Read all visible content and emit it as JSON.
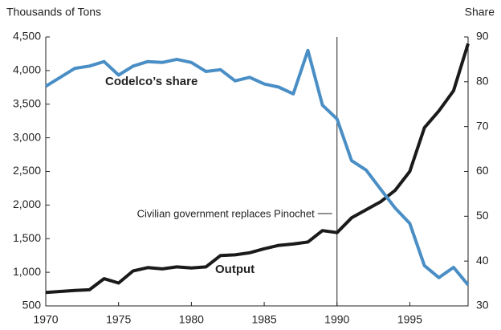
{
  "chart_data": {
    "type": "line",
    "y_label": "Thousands of Tons",
    "y2_label": "Share",
    "x": [
      1970,
      1971,
      1972,
      1973,
      1974,
      1975,
      1976,
      1977,
      1978,
      1979,
      1980,
      1981,
      1982,
      1983,
      1984,
      1985,
      1986,
      1987,
      1988,
      1989,
      1990,
      1991,
      1992,
      1993,
      1994,
      1995,
      1996,
      1997,
      1998,
      1999
    ],
    "series": [
      {
        "name": "Output",
        "color": "#1a1a1a",
        "axis": "y",
        "values": [
          700,
          715,
          730,
          740,
          905,
          840,
          1020,
          1070,
          1050,
          1080,
          1065,
          1080,
          1250,
          1260,
          1290,
          1350,
          1400,
          1420,
          1450,
          1620,
          1590,
          1810,
          1930,
          2050,
          2220,
          2500,
          3150,
          3400,
          3700,
          4400
        ]
      },
      {
        "name": "Codelco’s share",
        "color": "#4a8ec6",
        "axis": "y2",
        "values": [
          79,
          81,
          83,
          83.5,
          84.5,
          81.5,
          83.5,
          84.5,
          84.3,
          85,
          84.3,
          82.3,
          82.7,
          80.2,
          81,
          79.5,
          78.8,
          77.3,
          87,
          74.8,
          71.7,
          62.4,
          60.3,
          56,
          51.8,
          48.4,
          39,
          36.3,
          38.6,
          34.7
        ]
      }
    ],
    "annotation": {
      "text": "Civilian government replaces Pinochet",
      "x": 1990
    },
    "xlim": [
      1970,
      1999
    ],
    "xticks": [
      1970,
      1975,
      1980,
      1985,
      1990,
      1995
    ],
    "ylim": [
      500,
      4500
    ],
    "yticks": [
      {
        "value": 500,
        "label": "500"
      },
      {
        "value": 1000,
        "label": "1,000"
      },
      {
        "value": 1500,
        "label": "1,500"
      },
      {
        "value": 2000,
        "label": "2,000"
      },
      {
        "value": 2500,
        "label": "2,500"
      },
      {
        "value": 3000,
        "label": "3,000"
      },
      {
        "value": 3500,
        "label": "3,500"
      },
      {
        "value": 4000,
        "label": "4,000"
      },
      {
        "value": 4500,
        "label": "4,500"
      }
    ],
    "y2lim": [
      30,
      90
    ],
    "y2ticks": [
      30,
      40,
      50,
      60,
      70,
      80,
      90
    ]
  }
}
